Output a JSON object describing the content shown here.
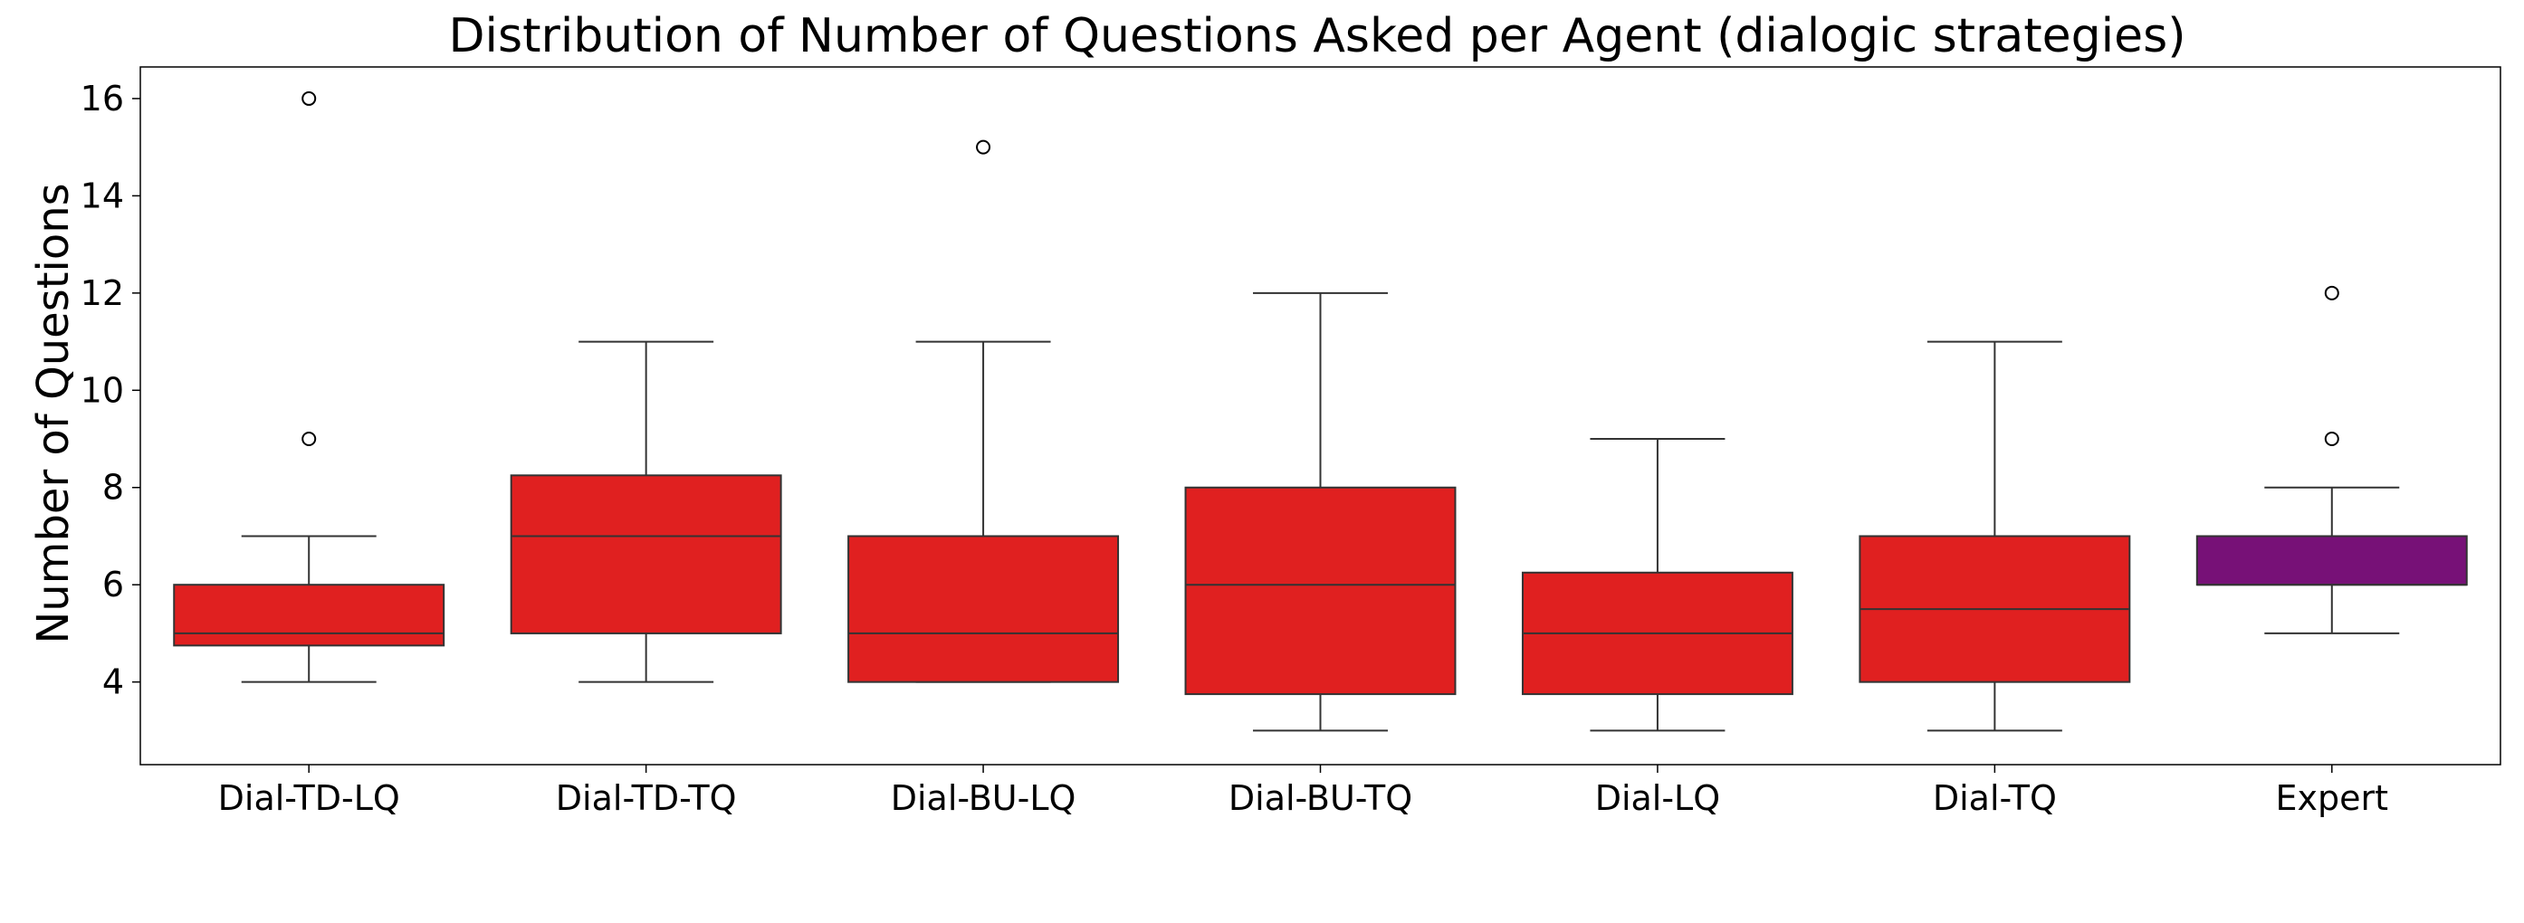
{
  "chart_data": {
    "type": "box",
    "title": "Distribution of Number of Questions Asked per Agent (dialogic strategies)",
    "xlabel": "",
    "ylabel": "Number of Questions",
    "ylim": [
      2.3,
      16.65
    ],
    "yticks": [
      4,
      6,
      8,
      10,
      12,
      14,
      16
    ],
    "grid": false,
    "categories": [
      "Dial-TD-LQ",
      "Dial-TD-TQ",
      "Dial-BU-LQ",
      "Dial-BU-TQ",
      "Dial-LQ",
      "Dial-TQ",
      "Expert"
    ],
    "boxes": [
      {
        "category": "Dial-TD-LQ",
        "whisker_low": 4,
        "q1": 4.75,
        "median": 5,
        "q3": 6,
        "whisker_high": 7,
        "outliers": [
          9,
          16
        ],
        "color": "#e02020"
      },
      {
        "category": "Dial-TD-TQ",
        "whisker_low": 4,
        "q1": 5,
        "median": 7,
        "q3": 8.25,
        "whisker_high": 11,
        "outliers": [],
        "color": "#e02020"
      },
      {
        "category": "Dial-BU-LQ",
        "whisker_low": 4,
        "q1": 4,
        "median": 5,
        "q3": 7,
        "whisker_high": 11,
        "outliers": [
          15
        ],
        "color": "#e02020"
      },
      {
        "category": "Dial-BU-TQ",
        "whisker_low": 3,
        "q1": 3.75,
        "median": 6,
        "q3": 8,
        "whisker_high": 12,
        "outliers": [],
        "color": "#e02020"
      },
      {
        "category": "Dial-LQ",
        "whisker_low": 3,
        "q1": 3.75,
        "median": 5,
        "q3": 6.25,
        "whisker_high": 9,
        "outliers": [],
        "color": "#e02020"
      },
      {
        "category": "Dial-TQ",
        "whisker_low": 3,
        "q1": 4,
        "median": 5.5,
        "q3": 7,
        "whisker_high": 11,
        "outliers": [],
        "color": "#e02020"
      },
      {
        "category": "Expert",
        "whisker_low": 5,
        "q1": 6,
        "median": 6,
        "q3": 7,
        "whisker_high": 8,
        "outliers": [
          9,
          12
        ],
        "color": "#771177"
      }
    ]
  }
}
